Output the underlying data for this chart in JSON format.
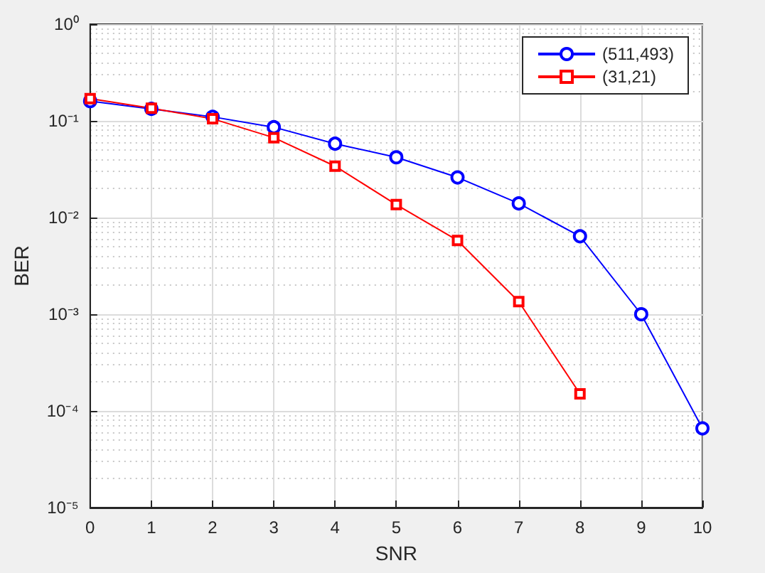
{
  "chart_data": {
    "type": "line",
    "xlabel": "SNR",
    "ylabel": "BER",
    "x": [
      0,
      1,
      2,
      3,
      4,
      5,
      6,
      7,
      8,
      9,
      10
    ],
    "series": [
      {
        "name": "(511,493)",
        "color": "#0000ff",
        "marker": "circle",
        "values": [
          0.16,
          0.133,
          0.11,
          0.086,
          0.058,
          0.042,
          0.026,
          0.014,
          0.0064,
          0.001,
          6.6e-05
        ]
      },
      {
        "name": "(31,21)",
        "color": "#ff0000",
        "marker": "square",
        "values": [
          0.17,
          0.135,
          0.105,
          0.067,
          0.034,
          0.0136,
          0.0058,
          0.00135,
          0.00015,
          null,
          null
        ]
      }
    ],
    "log": "y",
    "xlim": [
      0,
      10
    ],
    "xticks": [
      0,
      1,
      2,
      3,
      4,
      5,
      6,
      7,
      8,
      9,
      10
    ],
    "ylim": [
      1e-05,
      1
    ],
    "yticks": [
      {
        "value": 1e-05,
        "label": "10⁻⁵"
      },
      {
        "value": 0.0001,
        "label": "10⁻⁴"
      },
      {
        "value": 0.001,
        "label": "10⁻³"
      },
      {
        "value": 0.01,
        "label": "10⁻²"
      },
      {
        "value": 0.1,
        "label": "10⁻¹"
      },
      {
        "value": 1,
        "label": "10⁰"
      }
    ],
    "grid": true,
    "legend": "top right",
    "line_style": "solid"
  }
}
